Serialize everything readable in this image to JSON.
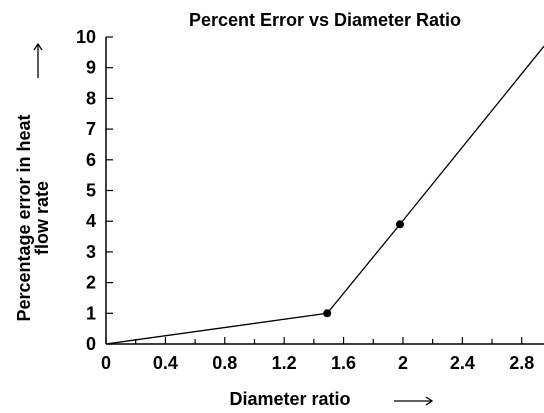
{
  "chart_data": {
    "type": "line",
    "title": "Percent Error vs Diameter Ratio",
    "xlabel": "Diameter ratio",
    "ylabel_lines": [
      "Percentage error in heat",
      "flow rate"
    ],
    "xlim": [
      0,
      2.95
    ],
    "ylim": [
      0,
      10
    ],
    "x_ticks": [
      0,
      0.4,
      0.8,
      1.2,
      1.6,
      2,
      2.4,
      2.8
    ],
    "x_tick_labels": [
      "0",
      "0.4",
      "0.8",
      "1.2",
      "1.6",
      "2",
      "2.4",
      "2.8"
    ],
    "x_minor_ticks": [
      0.2,
      0.6,
      1.0,
      1.4,
      1.8,
      2.2,
      2.6
    ],
    "y_ticks": [
      0,
      1,
      2,
      3,
      4,
      5,
      6,
      7,
      8,
      9,
      10
    ],
    "y_tick_labels": [
      "0",
      "1",
      "2",
      "3",
      "4",
      "5",
      "6",
      "7",
      "8",
      "9",
      "10"
    ],
    "grid": false,
    "series": [
      {
        "x": [
          0,
          1.49,
          1.98,
          2.95
        ],
        "y": [
          0,
          1.0,
          3.9,
          9.7
        ],
        "markers_at": [
          1,
          2
        ]
      }
    ]
  }
}
